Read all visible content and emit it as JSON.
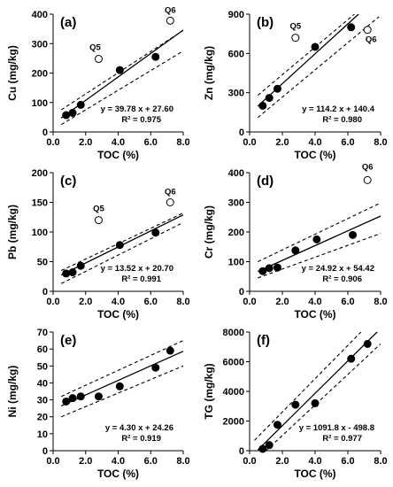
{
  "chart_data": [
    {
      "id": "cu",
      "type": "scatter",
      "panel_label": "(a)",
      "xlabel": "TOC (%)",
      "ylabel": "Cu (mg/kg)",
      "xlim": [
        0,
        8
      ],
      "ylim": [
        0,
        400
      ],
      "xticks": [
        0.0,
        2.0,
        4.0,
        6.0,
        8.0
      ],
      "xtick_labels": [
        "0.0",
        "2.0",
        "4.0",
        "6.0",
        "8.0"
      ],
      "yticks": [
        0,
        100,
        200,
        300,
        400
      ],
      "ytick_labels": [
        "0",
        "100",
        "200",
        "300",
        "400"
      ],
      "points": [
        {
          "x": 0.8,
          "y": 57
        },
        {
          "x": 1.2,
          "y": 65
        },
        {
          "x": 1.7,
          "y": 92
        },
        {
          "x": 4.1,
          "y": 210
        },
        {
          "x": 6.3,
          "y": 255
        }
      ],
      "outliers": [
        {
          "x": 2.8,
          "y": 248,
          "label": "Q5"
        },
        {
          "x": 7.2,
          "y": 378,
          "label": "Q6"
        }
      ],
      "fit": {
        "slope": 39.78,
        "intercept": 27.6
      },
      "band": {
        "upper": [
          [
            0.5,
            75
          ],
          [
            8,
            345
          ]
        ],
        "lower": [
          [
            0.5,
            25
          ],
          [
            8,
            275
          ]
        ]
      },
      "equation": "y = 39.78 x + 27.60",
      "r2": "R² = 0.975"
    },
    {
      "id": "zn",
      "type": "scatter",
      "panel_label": "(b)",
      "xlabel": "TOC (%)",
      "ylabel": "Zn (mg/kg)",
      "xlim": [
        0,
        8
      ],
      "ylim": [
        0,
        900
      ],
      "xticks": [
        0.0,
        2.0,
        4.0,
        6.0,
        8.0
      ],
      "xtick_labels": [
        "0.0",
        "2.0",
        "4.0",
        "6.0",
        "8.0"
      ],
      "yticks": [
        0,
        300,
        600,
        900
      ],
      "ytick_labels": [
        "0",
        "300",
        "600",
        "900"
      ],
      "points": [
        {
          "x": 0.8,
          "y": 200
        },
        {
          "x": 1.2,
          "y": 260
        },
        {
          "x": 1.7,
          "y": 330
        },
        {
          "x": 4.0,
          "y": 650
        },
        {
          "x": 6.2,
          "y": 800
        }
      ],
      "outliers": [
        {
          "x": 2.8,
          "y": 720,
          "label": "Q5"
        },
        {
          "x": 7.2,
          "y": 780,
          "label": "Q6"
        }
      ],
      "fit": {
        "slope": 114.2,
        "intercept": 140.4
      },
      "band": {
        "upper": [
          [
            0.5,
            280
          ],
          [
            6.4,
            900
          ]
        ],
        "lower": [
          [
            0.5,
            110
          ],
          [
            7.9,
            880
          ]
        ]
      },
      "equation": "y = 114.2 x + 140.4",
      "r2": "R² = 0.980"
    },
    {
      "id": "pb",
      "type": "scatter",
      "panel_label": "(c)",
      "xlabel": "TOC (%)",
      "ylabel": "Pb (mg/kg)",
      "xlim": [
        0,
        8
      ],
      "ylim": [
        0,
        200
      ],
      "xticks": [
        0.0,
        2.0,
        4.0,
        6.0,
        8.0
      ],
      "xtick_labels": [
        "0.0",
        "2.0",
        "4.0",
        "6.0",
        "8.0"
      ],
      "yticks": [
        0,
        50,
        100,
        150,
        200
      ],
      "ytick_labels": [
        "0",
        "50",
        "100",
        "150",
        "200"
      ],
      "points": [
        {
          "x": 0.8,
          "y": 30
        },
        {
          "x": 1.2,
          "y": 32
        },
        {
          "x": 1.7,
          "y": 43
        },
        {
          "x": 4.1,
          "y": 78
        },
        {
          "x": 6.3,
          "y": 99
        }
      ],
      "outliers": [
        {
          "x": 2.8,
          "y": 120,
          "label": "Q5"
        },
        {
          "x": 7.2,
          "y": 150,
          "label": "Q6"
        }
      ],
      "fit": {
        "slope": 13.52,
        "intercept": 20.7
      },
      "band": {
        "upper": [
          [
            0.5,
            35
          ],
          [
            8,
            132
          ]
        ],
        "lower": [
          [
            0.5,
            13
          ],
          [
            8,
            116
          ]
        ]
      },
      "equation": "y = 13.52 x + 20.70",
      "r2": "R² = 0.991"
    },
    {
      "id": "cr",
      "type": "scatter",
      "panel_label": "(d)",
      "xlabel": "TOC (%)",
      "ylabel": "Cr (mg/kg)",
      "xlim": [
        0,
        8
      ],
      "ylim": [
        0,
        400
      ],
      "xticks": [
        0.0,
        2.0,
        4.0,
        6.0,
        8.0
      ],
      "xtick_labels": [
        "0.0",
        "2.0",
        "4.0",
        "6.0",
        "8.0"
      ],
      "yticks": [
        0,
        100,
        200,
        300,
        400
      ],
      "ytick_labels": [
        "0",
        "100",
        "200",
        "300",
        "400"
      ],
      "points": [
        {
          "x": 0.8,
          "y": 68
        },
        {
          "x": 1.2,
          "y": 78
        },
        {
          "x": 1.7,
          "y": 80
        },
        {
          "x": 2.8,
          "y": 138
        },
        {
          "x": 4.1,
          "y": 175
        },
        {
          "x": 6.3,
          "y": 190
        }
      ],
      "outliers": [
        {
          "x": 7.2,
          "y": 375,
          "label": "Q6"
        }
      ],
      "fit": {
        "slope": 24.92,
        "intercept": 54.42
      },
      "band": {
        "upper": [
          [
            0.5,
            100
          ],
          [
            8,
            298
          ]
        ],
        "lower": [
          [
            0.5,
            45
          ],
          [
            8,
            195
          ]
        ]
      },
      "equation": "y = 24.92 x + 54.42",
      "r2": "R² = 0.906"
    },
    {
      "id": "ni",
      "type": "scatter",
      "panel_label": "(e)",
      "xlabel": "TOC (%)",
      "ylabel": "Ni (mg/kg)",
      "xlim": [
        0,
        8
      ],
      "ylim": [
        0,
        70
      ],
      "xticks": [
        0.0,
        2.0,
        4.0,
        6.0,
        8.0
      ],
      "xtick_labels": [
        "0.0",
        "2.0",
        "4.0",
        "6.0",
        "8.0"
      ],
      "yticks": [
        0,
        10,
        20,
        30,
        40,
        50,
        60,
        70
      ],
      "ytick_labels": [
        "0",
        "10",
        "20",
        "30",
        "40",
        "50",
        "60",
        "70"
      ],
      "points": [
        {
          "x": 0.8,
          "y": 29
        },
        {
          "x": 1.2,
          "y": 31
        },
        {
          "x": 1.7,
          "y": 32
        },
        {
          "x": 2.8,
          "y": 32
        },
        {
          "x": 4.1,
          "y": 38
        },
        {
          "x": 6.3,
          "y": 49
        },
        {
          "x": 7.2,
          "y": 59
        }
      ],
      "outliers": [],
      "fit": {
        "slope": 4.3,
        "intercept": 24.26
      },
      "band": {
        "upper": [
          [
            0.5,
            32
          ],
          [
            8,
            65
          ]
        ],
        "lower": [
          [
            0.5,
            20
          ],
          [
            8,
            50
          ]
        ]
      },
      "equation": "y = 4.30 x + 24.26",
      "r2": "R² = 0.919"
    },
    {
      "id": "tg",
      "type": "scatter",
      "panel_label": "(f)",
      "xlabel": "TOC (%)",
      "ylabel": "TG (mg/kg)",
      "xlim": [
        0,
        8
      ],
      "ylim": [
        0,
        8000
      ],
      "xticks": [
        0.0,
        2.0,
        4.0,
        6.0,
        8.0
      ],
      "xtick_labels": [
        "0.0",
        "2.0",
        "4.0",
        "6.0",
        "8.0"
      ],
      "yticks": [
        0,
        2000,
        4000,
        6000,
        8000
      ],
      "ytick_labels": [
        "0",
        "2000",
        "4000",
        "6000",
        "8000"
      ],
      "points": [
        {
          "x": 0.8,
          "y": 120
        },
        {
          "x": 1.2,
          "y": 380
        },
        {
          "x": 1.7,
          "y": 1750
        },
        {
          "x": 2.8,
          "y": 3100
        },
        {
          "x": 4.0,
          "y": 3200
        },
        {
          "x": 6.2,
          "y": 6200
        },
        {
          "x": 7.2,
          "y": 7200
        }
      ],
      "outliers": [],
      "fit": {
        "slope": 1091.8,
        "intercept": -498.8
      },
      "band": {
        "upper": [
          [
            0.3,
            700
          ],
          [
            6.8,
            8000
          ]
        ],
        "lower": [
          [
            1.0,
            0
          ],
          [
            8,
            7200
          ]
        ]
      },
      "equation": "y = 1091.8 x - 498.8",
      "r2": "R² = 0.977"
    }
  ]
}
